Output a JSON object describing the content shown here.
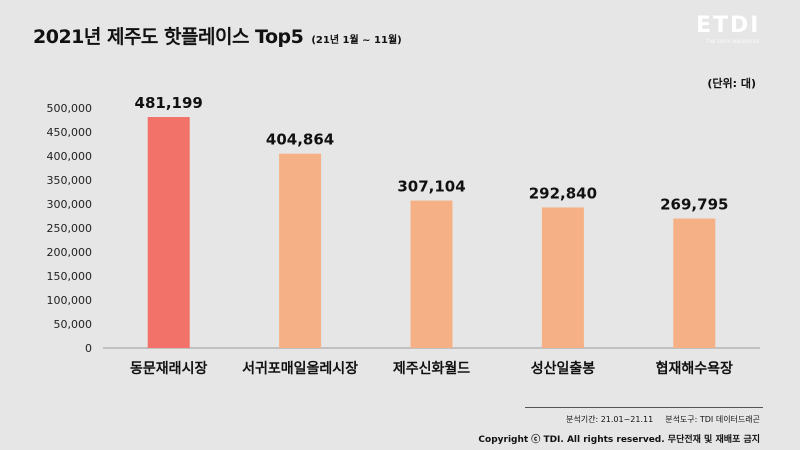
{
  "header": {
    "title": "2021년 제주도 핫플레이스 Top5",
    "subtitle": "(21년 1월 ~ 11월)",
    "unit_label": "(단위: 대)"
  },
  "logo": {
    "mark": "ETDI",
    "tagline": "THE DATA INNOVATOR"
  },
  "footer": {
    "period": "분석기간: 21.01~21.11",
    "tool": "분석도구: TDI 데이터드래곤",
    "copyright": "Copyright ⓒ TDI. All rights reserved. 무단전재 및 재배포 금지"
  },
  "chart_data": {
    "type": "bar",
    "categories": [
      "동문재래시장",
      "서귀포매일올레시장",
      "제주신화월드",
      "성산일출봉",
      "협재해수욕장"
    ],
    "values": [
      481199,
      404864,
      307104,
      292840,
      269795
    ],
    "value_labels": [
      "481,199",
      "404,864",
      "307,104",
      "292,840",
      "269,795"
    ],
    "yticks": [
      "0",
      "50,000",
      "100,000",
      "150,000",
      "200,000",
      "250,000",
      "300,000",
      "350,000",
      "400,000",
      "450,000",
      "500,000"
    ],
    "ylim": [
      0,
      500000
    ],
    "grid": false,
    "colors": {
      "highlight": "#f2726a",
      "default": "#f5b185"
    }
  }
}
